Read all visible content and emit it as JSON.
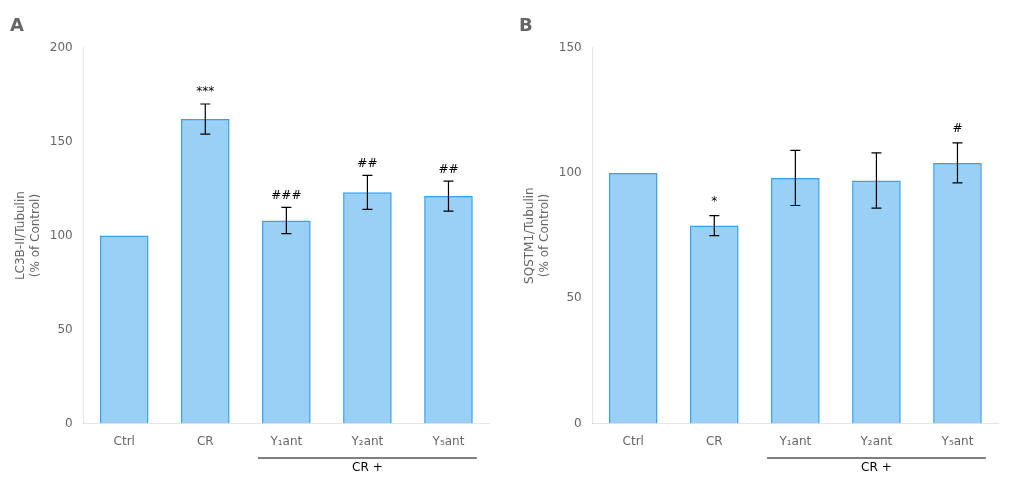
{
  "chart_data": [
    {
      "type": "bar",
      "title": "A",
      "categories": [
        "Ctrl",
        "CR",
        "Y₁ant",
        "Y₂ant",
        "Y₅ant"
      ],
      "values": [
        100,
        162,
        108,
        123,
        121
      ],
      "errors": [
        0,
        8,
        7,
        9,
        8
      ],
      "ylabel": "LC3B-II/Tubulin\n(% of Control)",
      "ylim": [
        0,
        200
      ],
      "yticks": [
        0,
        50,
        100,
        150,
        200
      ],
      "grid": false,
      "annotations": [
        {
          "text": "***",
          "x": "CR",
          "y": 173
        },
        {
          "text": "###",
          "x": "Y₁ant",
          "y": 118
        },
        {
          "text": "##",
          "x": "Y₂ant",
          "y": 135
        },
        {
          "text": "##",
          "x": "Y₅ant",
          "y": 132
        },
        {
          "text": "CR +",
          "x": [
            "Y₁ant",
            "Y₅ant"
          ]
        }
      ]
    },
    {
      "type": "bar",
      "title": "B",
      "categories": [
        "Ctrl",
        "CR",
        "Y₁ant",
        "Y₂ant",
        "Y₅ant"
      ],
      "values": [
        100,
        79,
        98,
        97,
        104
      ],
      "errors": [
        0,
        4,
        11,
        11,
        8
      ],
      "ylabel": "SQSTM1/Tubulin\n(% of Control)",
      "ylim": [
        0,
        150
      ],
      "yticks": [
        0,
        50,
        100,
        150
      ],
      "grid": false,
      "annotations": [
        {
          "text": "*",
          "x": "CR",
          "y": 86
        },
        {
          "text": "#",
          "x": "Y₅ant",
          "y": 115
        },
        {
          "text": "CR +",
          "x": [
            "Y₁ant",
            "Y₅ant"
          ]
        }
      ]
    }
  ]
}
